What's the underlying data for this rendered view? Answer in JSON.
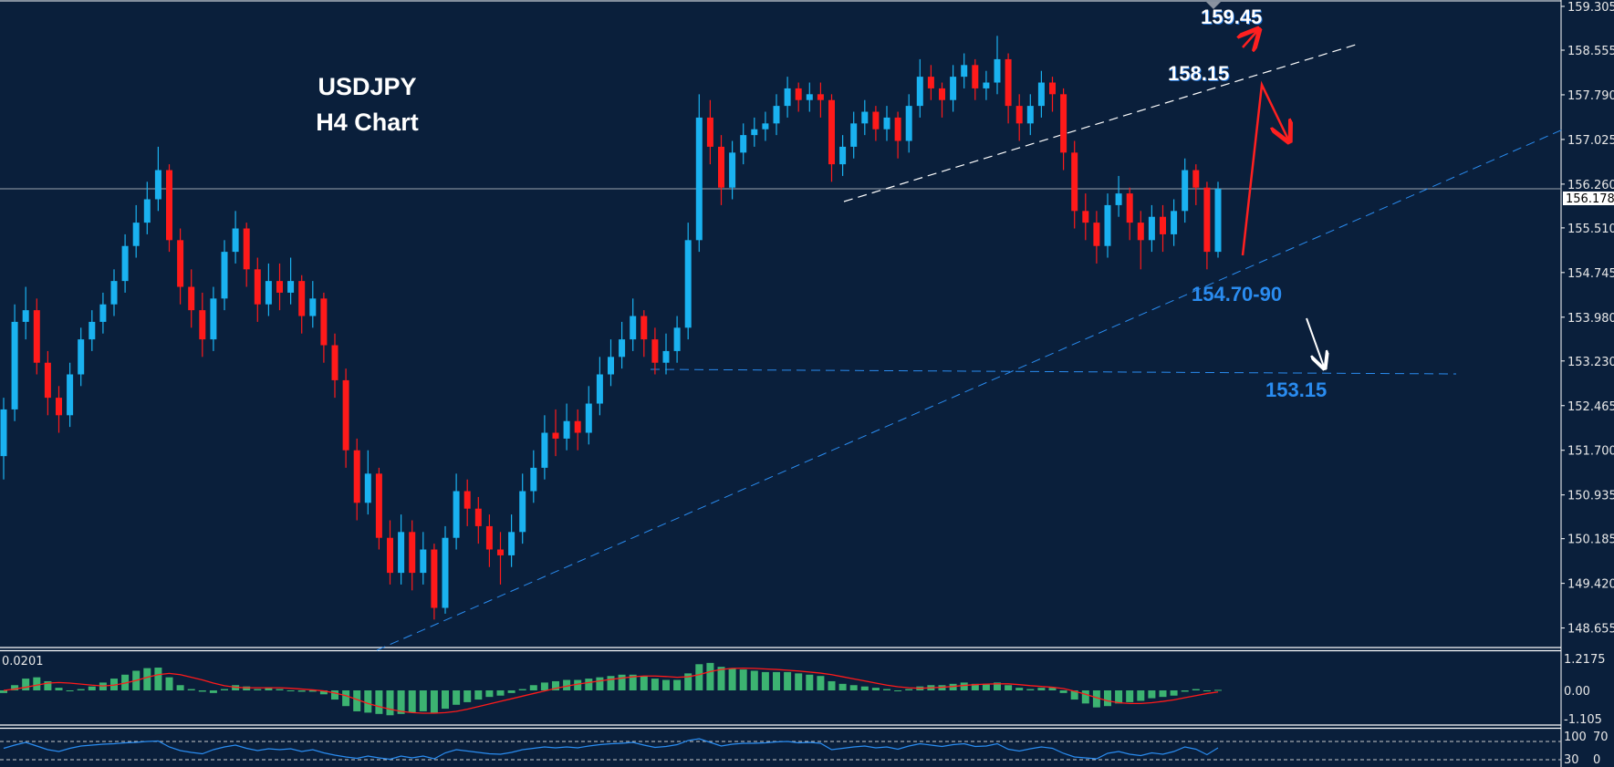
{
  "chart_data": {
    "type": "candlestick",
    "title": "USDJPY",
    "subtitle": "H4 Chart",
    "price_axis": {
      "ticks": [
        "159.305",
        "158.555",
        "157.790",
        "157.025",
        "156.260",
        "155.510",
        "154.745",
        "153.980",
        "153.230",
        "152.465",
        "151.700",
        "150.935",
        "150.185",
        "149.420",
        "148.655"
      ],
      "current_price": "156.178",
      "ylim": [
        148.3,
        159.4
      ]
    },
    "colors": {
      "background": "#0a1f3b",
      "bull": "#1ab2f0",
      "bear": "#ff1a1a",
      "macd_hist": "#3cb371",
      "macd_signal": "#ff1a1a",
      "rsi": "#2a8cf0"
    },
    "candles": [
      [
        151.6,
        152.6,
        151.2,
        152.4
      ],
      [
        152.4,
        154.2,
        152.2,
        153.9
      ],
      [
        153.9,
        154.5,
        153.6,
        154.1
      ],
      [
        154.1,
        154.3,
        153.0,
        153.2
      ],
      [
        153.2,
        153.4,
        152.3,
        152.6
      ],
      [
        152.6,
        152.8,
        152.0,
        152.3
      ],
      [
        152.3,
        153.2,
        152.1,
        153.0
      ],
      [
        153.0,
        153.8,
        152.8,
        153.6
      ],
      [
        153.6,
        154.1,
        153.4,
        153.9
      ],
      [
        153.9,
        154.4,
        153.7,
        154.2
      ],
      [
        154.2,
        154.8,
        154.0,
        154.6
      ],
      [
        154.6,
        155.4,
        154.4,
        155.2
      ],
      [
        155.2,
        155.9,
        155.0,
        155.6
      ],
      [
        155.6,
        156.3,
        155.4,
        156.0
      ],
      [
        156.0,
        156.9,
        155.8,
        156.5
      ],
      [
        156.5,
        156.6,
        155.1,
        155.3
      ],
      [
        155.3,
        155.5,
        154.2,
        154.5
      ],
      [
        154.5,
        154.8,
        153.8,
        154.1
      ],
      [
        154.1,
        154.4,
        153.3,
        153.6
      ],
      [
        153.6,
        154.5,
        153.4,
        154.3
      ],
      [
        154.3,
        155.3,
        154.1,
        155.1
      ],
      [
        155.1,
        155.8,
        154.9,
        155.5
      ],
      [
        155.5,
        155.6,
        154.5,
        154.8
      ],
      [
        154.8,
        155.0,
        153.9,
        154.2
      ],
      [
        154.2,
        154.9,
        154.0,
        154.6
      ],
      [
        154.6,
        154.9,
        154.1,
        154.4
      ],
      [
        154.4,
        155.0,
        154.2,
        154.6
      ],
      [
        154.6,
        154.7,
        153.7,
        154.0
      ],
      [
        154.0,
        154.6,
        153.8,
        154.3
      ],
      [
        154.3,
        154.4,
        153.2,
        153.5
      ],
      [
        153.5,
        153.7,
        152.6,
        152.9
      ],
      [
        152.9,
        153.1,
        151.4,
        151.7
      ],
      [
        151.7,
        151.9,
        150.5,
        150.8
      ],
      [
        150.8,
        151.7,
        150.6,
        151.3
      ],
      [
        151.3,
        151.4,
        150.0,
        150.2
      ],
      [
        150.2,
        150.5,
        149.4,
        149.6
      ],
      [
        149.6,
        150.6,
        149.4,
        150.3
      ],
      [
        150.3,
        150.5,
        149.3,
        149.6
      ],
      [
        149.6,
        150.3,
        149.4,
        150.0
      ],
      [
        150.0,
        150.1,
        148.8,
        149.0
      ],
      [
        149.0,
        150.4,
        148.9,
        150.2
      ],
      [
        150.2,
        151.3,
        150.0,
        151.0
      ],
      [
        151.0,
        151.2,
        150.4,
        150.7
      ],
      [
        150.7,
        150.9,
        150.1,
        150.4
      ],
      [
        150.4,
        150.6,
        149.7,
        150.0
      ],
      [
        150.0,
        150.3,
        149.4,
        149.9
      ],
      [
        149.9,
        150.6,
        149.7,
        150.3
      ],
      [
        150.3,
        151.3,
        150.1,
        151.0
      ],
      [
        151.0,
        151.7,
        150.8,
        151.4
      ],
      [
        151.4,
        152.3,
        151.2,
        152.0
      ],
      [
        152.0,
        152.4,
        151.6,
        151.9
      ],
      [
        151.9,
        152.5,
        151.7,
        152.2
      ],
      [
        152.2,
        152.4,
        151.7,
        152.0
      ],
      [
        152.0,
        152.8,
        151.8,
        152.5
      ],
      [
        152.5,
        153.3,
        152.3,
        153.0
      ],
      [
        153.0,
        153.6,
        152.8,
        153.3
      ],
      [
        153.3,
        153.9,
        153.1,
        153.6
      ],
      [
        153.6,
        154.3,
        153.4,
        154.0
      ],
      [
        154.0,
        154.1,
        153.3,
        153.6
      ],
      [
        153.6,
        153.8,
        153.0,
        153.2
      ],
      [
        153.2,
        153.7,
        153.0,
        153.4
      ],
      [
        153.4,
        154.0,
        153.2,
        153.8
      ],
      [
        153.8,
        155.6,
        153.6,
        155.3
      ],
      [
        155.3,
        157.8,
        155.1,
        157.4
      ],
      [
        157.4,
        157.7,
        156.6,
        156.9
      ],
      [
        156.9,
        157.1,
        155.9,
        156.2
      ],
      [
        156.2,
        157.0,
        156.0,
        156.8
      ],
      [
        156.8,
        157.3,
        156.6,
        157.1
      ],
      [
        157.1,
        157.4,
        156.9,
        157.2
      ],
      [
        157.2,
        157.5,
        157.0,
        157.3
      ],
      [
        157.3,
        157.8,
        157.1,
        157.6
      ],
      [
        157.6,
        158.1,
        157.4,
        157.9
      ],
      [
        157.9,
        158.0,
        157.5,
        157.7
      ],
      [
        157.7,
        158.0,
        157.5,
        157.8
      ],
      [
        157.8,
        158.0,
        157.4,
        157.7
      ],
      [
        157.7,
        157.8,
        156.3,
        156.6
      ],
      [
        156.6,
        157.1,
        156.4,
        156.9
      ],
      [
        156.9,
        157.5,
        156.7,
        157.3
      ],
      [
        157.3,
        157.7,
        157.1,
        157.5
      ],
      [
        157.5,
        157.6,
        157.0,
        157.2
      ],
      [
        157.2,
        157.6,
        157.0,
        157.4
      ],
      [
        157.4,
        157.5,
        156.7,
        157.0
      ],
      [
        157.0,
        157.8,
        156.8,
        157.6
      ],
      [
        157.6,
        158.4,
        157.4,
        158.1
      ],
      [
        158.1,
        158.3,
        157.7,
        157.9
      ],
      [
        157.9,
        158.0,
        157.4,
        157.7
      ],
      [
        157.7,
        158.3,
        157.5,
        158.1
      ],
      [
        158.1,
        158.5,
        157.9,
        158.3
      ],
      [
        158.3,
        158.4,
        157.7,
        157.9
      ],
      [
        157.9,
        158.2,
        157.7,
        158.0
      ],
      [
        158.0,
        158.8,
        157.8,
        158.4
      ],
      [
        158.4,
        158.5,
        157.3,
        157.6
      ],
      [
        157.6,
        157.8,
        157.0,
        157.3
      ],
      [
        157.3,
        157.8,
        157.1,
        157.6
      ],
      [
        157.6,
        158.2,
        157.4,
        158.0
      ],
      [
        158.0,
        158.1,
        157.5,
        157.8
      ],
      [
        157.8,
        157.9,
        156.5,
        156.8
      ],
      [
        156.8,
        157.0,
        155.5,
        155.8
      ],
      [
        155.8,
        156.1,
        155.3,
        155.6
      ],
      [
        155.6,
        155.8,
        154.9,
        155.2
      ],
      [
        155.2,
        156.1,
        155.0,
        155.9
      ],
      [
        155.9,
        156.4,
        155.7,
        156.1
      ],
      [
        156.1,
        156.2,
        155.3,
        155.6
      ],
      [
        155.6,
        155.8,
        154.8,
        155.3
      ],
      [
        155.3,
        155.9,
        155.1,
        155.7
      ],
      [
        155.7,
        155.9,
        155.1,
        155.4
      ],
      [
        155.4,
        156.0,
        155.2,
        155.8
      ],
      [
        155.8,
        156.7,
        155.6,
        156.5
      ],
      [
        156.5,
        156.6,
        155.9,
        156.2
      ],
      [
        156.2,
        156.3,
        154.8,
        155.1
      ],
      [
        155.1,
        156.3,
        155.0,
        156.18
      ]
    ],
    "annotations": {
      "target_high": "159.45",
      "resistance": "158.15",
      "support_zone": "154.70-90",
      "support_low": "153.15"
    },
    "macd": {
      "value_label": "0.0201",
      "ticks": [
        "1.2175",
        "0.00",
        "-1.105"
      ],
      "ylim": [
        -1.105,
        1.2175
      ],
      "histogram": [
        -0.1,
        0.2,
        0.45,
        0.5,
        0.35,
        0.1,
        0.0,
        0.05,
        0.15,
        0.3,
        0.45,
        0.6,
        0.75,
        0.85,
        0.87,
        0.5,
        0.2,
        0.05,
        -0.05,
        -0.1,
        0.05,
        0.2,
        0.15,
        0.05,
        0.1,
        0.05,
        0.0,
        -0.05,
        -0.05,
        -0.15,
        -0.35,
        -0.6,
        -0.8,
        -0.85,
        -0.9,
        -0.95,
        -0.9,
        -0.85,
        -0.8,
        -0.85,
        -0.7,
        -0.55,
        -0.45,
        -0.35,
        -0.25,
        -0.2,
        -0.1,
        0.05,
        0.2,
        0.3,
        0.35,
        0.4,
        0.4,
        0.45,
        0.5,
        0.55,
        0.6,
        0.6,
        0.55,
        0.45,
        0.4,
        0.4,
        0.65,
        1.0,
        1.05,
        0.9,
        0.85,
        0.8,
        0.75,
        0.7,
        0.7,
        0.7,
        0.65,
        0.6,
        0.55,
        0.35,
        0.25,
        0.2,
        0.15,
        0.1,
        0.05,
        0.0,
        0.05,
        0.15,
        0.2,
        0.2,
        0.25,
        0.3,
        0.25,
        0.25,
        0.3,
        0.2,
        0.1,
        0.05,
        0.1,
        0.1,
        -0.1,
        -0.35,
        -0.5,
        -0.65,
        -0.6,
        -0.5,
        -0.45,
        -0.4,
        -0.3,
        -0.25,
        -0.2,
        -0.05,
        0.05,
        0.0,
        0.02
      ],
      "signal": [
        0.0,
        0.05,
        0.12,
        0.2,
        0.28,
        0.3,
        0.28,
        0.24,
        0.2,
        0.17,
        0.2,
        0.28,
        0.38,
        0.5,
        0.6,
        0.65,
        0.6,
        0.5,
        0.4,
        0.28,
        0.18,
        0.12,
        0.1,
        0.1,
        0.1,
        0.1,
        0.08,
        0.05,
        0.02,
        -0.02,
        -0.1,
        -0.2,
        -0.35,
        -0.5,
        -0.62,
        -0.72,
        -0.8,
        -0.85,
        -0.87,
        -0.87,
        -0.85,
        -0.8,
        -0.72,
        -0.62,
        -0.52,
        -0.42,
        -0.32,
        -0.22,
        -0.12,
        -0.02,
        0.08,
        0.16,
        0.24,
        0.3,
        0.36,
        0.42,
        0.47,
        0.52,
        0.55,
        0.55,
        0.53,
        0.5,
        0.52,
        0.6,
        0.72,
        0.8,
        0.84,
        0.85,
        0.84,
        0.82,
        0.8,
        0.77,
        0.74,
        0.7,
        0.66,
        0.6,
        0.52,
        0.44,
        0.36,
        0.28,
        0.2,
        0.14,
        0.1,
        0.08,
        0.1,
        0.12,
        0.15,
        0.19,
        0.22,
        0.24,
        0.25,
        0.25,
        0.22,
        0.18,
        0.15,
        0.12,
        0.07,
        -0.03,
        -0.15,
        -0.28,
        -0.4,
        -0.47,
        -0.5,
        -0.5,
        -0.47,
        -0.42,
        -0.36,
        -0.28,
        -0.2,
        -0.12,
        -0.06
      ]
    },
    "rsi": {
      "ticks": [
        "100",
        "70",
        "30",
        "0"
      ],
      "levels": [
        70,
        30
      ],
      "values": [
        55,
        62,
        68,
        60,
        52,
        48,
        55,
        60,
        62,
        64,
        65,
        67,
        68,
        70,
        71,
        58,
        50,
        46,
        43,
        52,
        58,
        62,
        55,
        50,
        54,
        52,
        54,
        48,
        52,
        45,
        40,
        36,
        33,
        38,
        34,
        31,
        38,
        34,
        38,
        32,
        45,
        52,
        49,
        46,
        43,
        42,
        46,
        52,
        55,
        58,
        56,
        58,
        56,
        60,
        63,
        65,
        66,
        68,
        62,
        57,
        59,
        63,
        72,
        76,
        68,
        60,
        64,
        66,
        66,
        67,
        69,
        70,
        67,
        68,
        66,
        52,
        55,
        58,
        60,
        56,
        58,
        53,
        60,
        65,
        62,
        59,
        63,
        65,
        59,
        60,
        65,
        53,
        49,
        54,
        58,
        55,
        44,
        36,
        34,
        32,
        44,
        48,
        42,
        39,
        45,
        42,
        48,
        58,
        53,
        41,
        56
      ]
    }
  }
}
